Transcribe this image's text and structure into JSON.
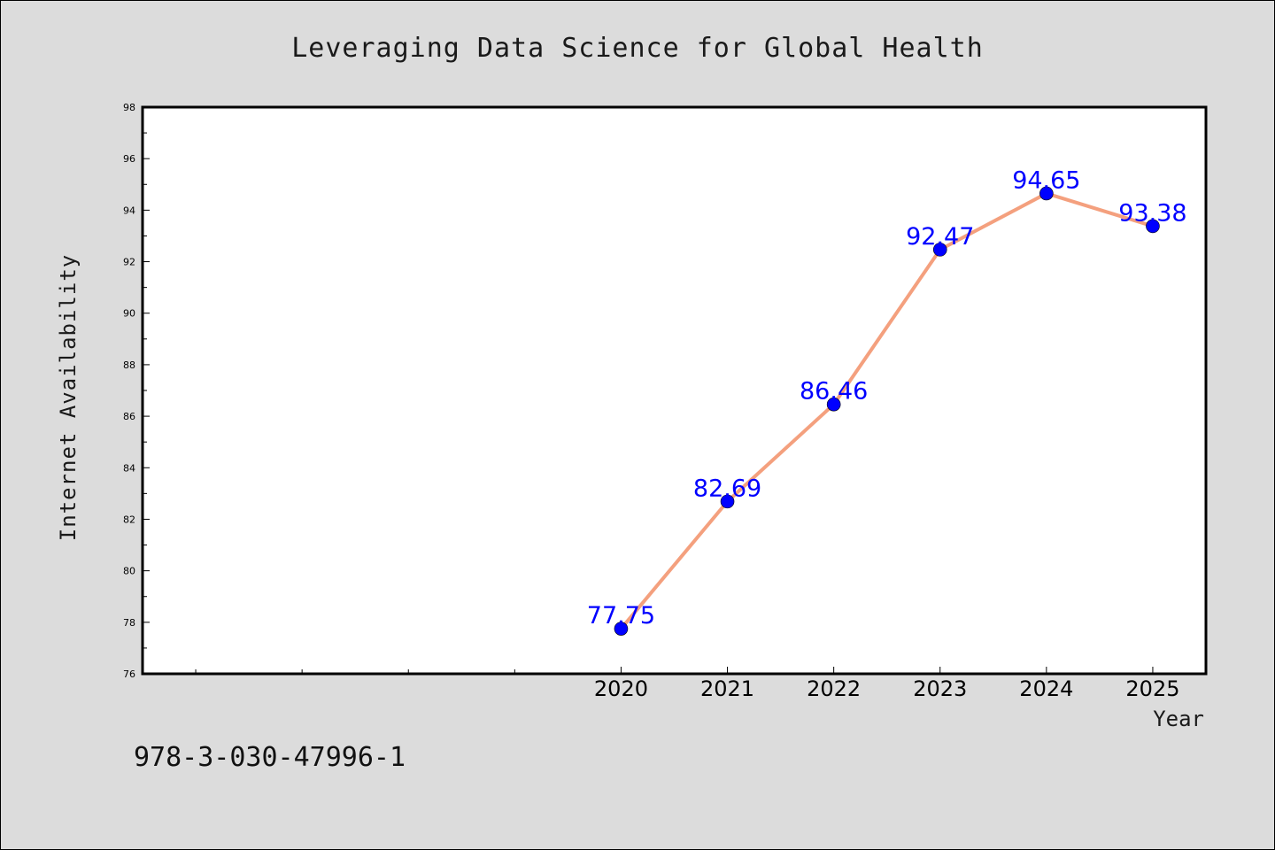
{
  "chart_data": {
    "type": "line",
    "title": "Leveraging Data Science for Global Health",
    "xlabel": "Year",
    "ylabel": "Internet Availability",
    "x": [
      2020,
      2021,
      2022,
      2023,
      2024,
      2025
    ],
    "x_tick_labels": [
      "2020",
      "2021",
      "2022",
      "2023",
      "2024",
      "2025"
    ],
    "series": [
      {
        "values": [
          77.75,
          82.69,
          86.46,
          92.47,
          94.65,
          93.38
        ],
        "data_labels": [
          "77.75",
          "82.69",
          "86.46",
          "92.47",
          "94.65",
          "93.38"
        ],
        "line_color": "#f4a07e",
        "marker_color": "#0000ff"
      }
    ],
    "xlim": [
      2015.5,
      2025.5
    ],
    "ylim": [
      76,
      98
    ],
    "y_ticks": [
      76,
      78,
      80,
      82,
      84,
      86,
      88,
      90,
      92,
      94,
      96,
      98
    ],
    "y_tick_labels": [
      "76",
      "78",
      "80",
      "82",
      "84",
      "86",
      "88",
      "90",
      "92",
      "94",
      "96",
      "98"
    ],
    "grid": false,
    "legend": "none"
  },
  "footer_text": "978-3-030-47996-1",
  "colors": {
    "background": "#dcdcdc",
    "plot_background": "#ffffff",
    "line": "#f4a07e",
    "marker": "#0000ff",
    "data_label": "#0000ff"
  }
}
